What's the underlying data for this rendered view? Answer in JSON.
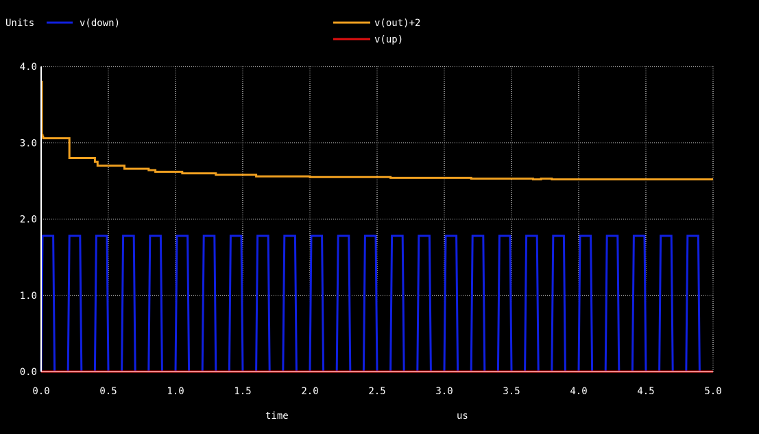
{
  "chart_data": {
    "type": "line",
    "title": "",
    "y_units_label": "Units",
    "x_label": "time",
    "x_units_label": "us",
    "xlim": [
      0,
      5.0
    ],
    "ylim": [
      0,
      4.0
    ],
    "x_ticks": [
      0.0,
      0.5,
      1.0,
      1.5,
      2.0,
      2.5,
      3.0,
      3.5,
      4.0,
      4.5,
      5.0
    ],
    "x_tick_labels": [
      "0.0",
      "0.5",
      "1.0",
      "1.5",
      "2.0",
      "2.5",
      "3.0",
      "3.5",
      "4.0",
      "4.5",
      "5.0"
    ],
    "y_ticks": [
      0.0,
      1.0,
      2.0,
      3.0,
      4.0
    ],
    "y_tick_labels": [
      "0.0",
      "1.0",
      "2.0",
      "3.0",
      "4.0"
    ],
    "grid": true,
    "background": "#000000",
    "axis_color": "#ffffff",
    "legend_placement": "top",
    "series": [
      {
        "name": "v(down)",
        "color": "#1020e0",
        "waveform": "pulse",
        "low": 0.0,
        "high": 1.78,
        "period": 0.2,
        "pulse_start": 0.0,
        "pulse_high_duration": 0.1,
        "x_end": 4.9
      },
      {
        "name": "v(out)+2",
        "color": "#f0a020",
        "x": [
          0.0,
          0.005,
          0.01,
          0.015,
          0.2,
          0.21,
          0.3,
          0.4,
          0.42,
          0.6,
          0.62,
          0.8,
          0.85,
          1.0,
          1.05,
          1.3,
          1.6,
          2.0,
          2.6,
          3.2,
          3.6,
          3.66,
          3.72,
          3.8,
          5.0
        ],
        "y": [
          3.8,
          3.1,
          3.08,
          3.06,
          3.06,
          2.8,
          2.8,
          2.75,
          2.7,
          2.7,
          2.66,
          2.64,
          2.62,
          2.62,
          2.6,
          2.58,
          2.56,
          2.55,
          2.54,
          2.53,
          2.53,
          2.52,
          2.53,
          2.52,
          2.52
        ]
      },
      {
        "name": "v(up)",
        "color": "#e01010",
        "x": [
          0.0,
          5.0
        ],
        "y": [
          0.0,
          0.0
        ]
      }
    ]
  }
}
